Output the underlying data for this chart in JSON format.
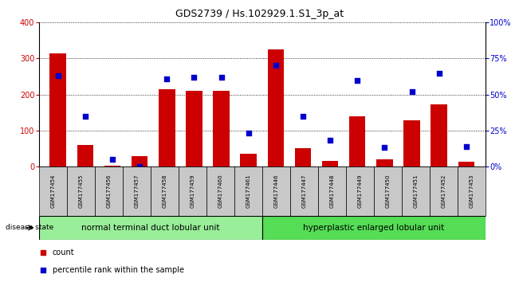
{
  "title": "GDS2739 / Hs.102929.1.S1_3p_at",
  "samples": [
    "GSM177454",
    "GSM177455",
    "GSM177456",
    "GSM177457",
    "GSM177458",
    "GSM177459",
    "GSM177460",
    "GSM177461",
    "GSM177446",
    "GSM177447",
    "GSM177448",
    "GSM177449",
    "GSM177450",
    "GSM177451",
    "GSM177452",
    "GSM177453"
  ],
  "counts": [
    315,
    60,
    3,
    28,
    215,
    210,
    210,
    35,
    325,
    50,
    15,
    140,
    20,
    128,
    172,
    12
  ],
  "percentiles": [
    63,
    35,
    5,
    0,
    61,
    62,
    62,
    23,
    70,
    35,
    18,
    60,
    13,
    52,
    65,
    14
  ],
  "group1_label": "normal terminal duct lobular unit",
  "group2_label": "hyperplastic enlarged lobular unit",
  "group1_count": 8,
  "group2_count": 8,
  "bar_color": "#cc0000",
  "dot_color": "#0000cc",
  "ylim_left": [
    0,
    400
  ],
  "ylim_right": [
    0,
    100
  ],
  "yticks_left": [
    0,
    100,
    200,
    300,
    400
  ],
  "yticks_right": [
    0,
    25,
    50,
    75,
    100
  ],
  "ytick_labels_right": [
    "0%",
    "25%",
    "50%",
    "75%",
    "100%"
  ],
  "group1_bg": "#99ee99",
  "group2_bg": "#55dd55",
  "xlabel_bg": "#c8c8c8",
  "disease_state_label": "disease state",
  "legend_count_label": "count",
  "legend_pct_label": "percentile rank within the sample",
  "title_fontsize": 9,
  "tick_fontsize": 7,
  "label_fontsize": 7,
  "group_fontsize": 7.5
}
